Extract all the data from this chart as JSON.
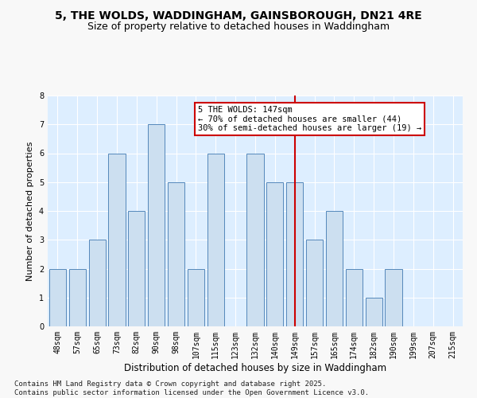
{
  "title": "5, THE WOLDS, WADDINGHAM, GAINSBOROUGH, DN21 4RE",
  "subtitle": "Size of property relative to detached houses in Waddingham",
  "xlabel": "Distribution of detached houses by size in Waddingham",
  "ylabel": "Number of detached properties",
  "categories": [
    "48sqm",
    "57sqm",
    "65sqm",
    "73sqm",
    "82sqm",
    "90sqm",
    "98sqm",
    "107sqm",
    "115sqm",
    "123sqm",
    "132sqm",
    "140sqm",
    "149sqm",
    "157sqm",
    "165sqm",
    "174sqm",
    "182sqm",
    "190sqm",
    "199sqm",
    "207sqm",
    "215sqm"
  ],
  "values": [
    2,
    2,
    3,
    6,
    4,
    7,
    5,
    2,
    6,
    0,
    6,
    5,
    5,
    3,
    4,
    2,
    1,
    2,
    0,
    0,
    0
  ],
  "bar_color": "#ccdff0",
  "bar_edge_color": "#5588bb",
  "vline_index": 12,
  "vline_color": "#cc0000",
  "annotation_text": "5 THE WOLDS: 147sqm\n← 70% of detached houses are smaller (44)\n30% of semi-detached houses are larger (19) →",
  "annotation_box_facecolor": "#ffffff",
  "annotation_box_edgecolor": "#cc0000",
  "ylim": [
    0,
    8
  ],
  "yticks": [
    0,
    1,
    2,
    3,
    4,
    5,
    6,
    7,
    8
  ],
  "axes_bg": "#ddeeff",
  "grid_color": "#ffffff",
  "fig_bg": "#f8f8f8",
  "title_fontsize": 10,
  "subtitle_fontsize": 9,
  "xlabel_fontsize": 8.5,
  "ylabel_fontsize": 8,
  "tick_fontsize": 7,
  "annotation_fontsize": 7.5,
  "footer_fontsize": 6.5,
  "footer": "Contains HM Land Registry data © Crown copyright and database right 2025.\nContains public sector information licensed under the Open Government Licence v3.0."
}
